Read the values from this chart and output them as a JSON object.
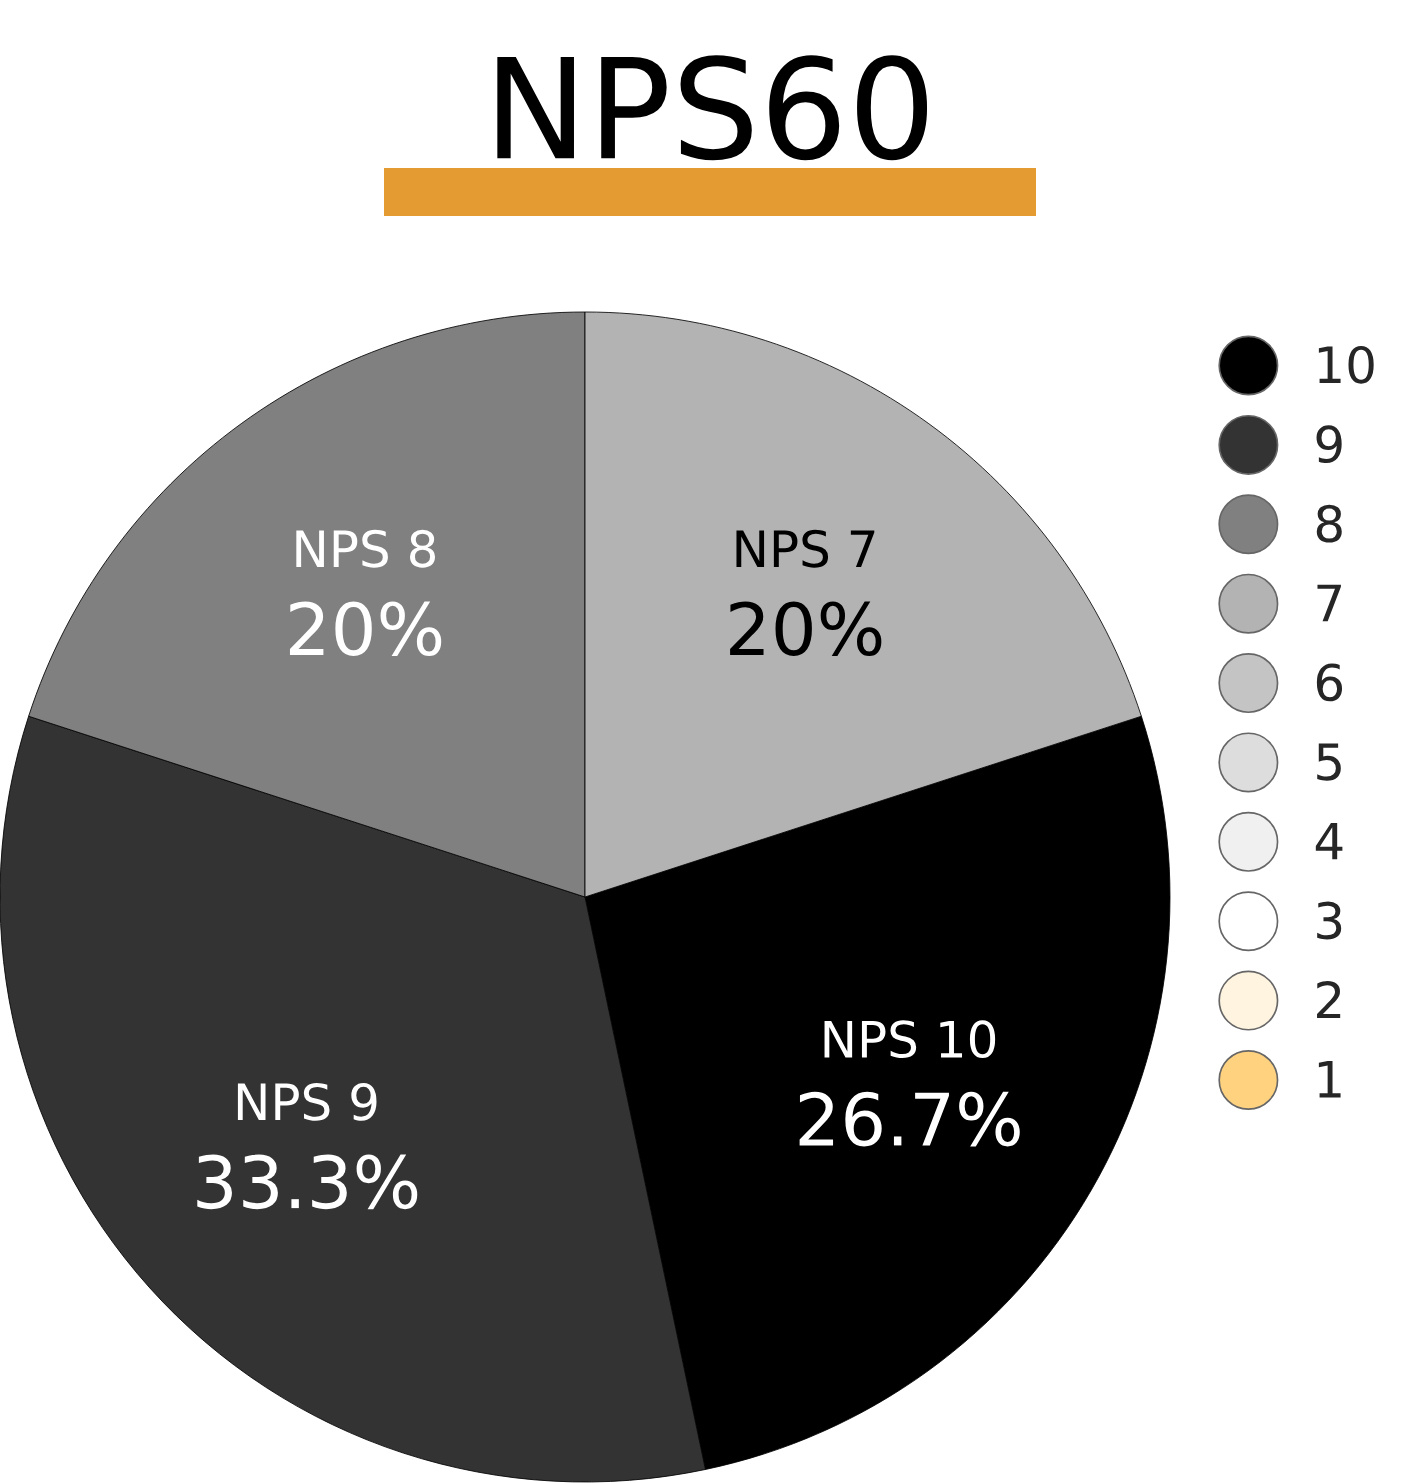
{
  "chart_data": {
    "type": "pie",
    "title": "NPS60",
    "categories": [
      "10",
      "9",
      "8",
      "7",
      "6",
      "5",
      "4",
      "3",
      "2",
      "1"
    ],
    "values": [
      26.7,
      33.3,
      20,
      20,
      0,
      0,
      0,
      0,
      0,
      0
    ],
    "colors": [
      "#000000",
      "#333333",
      "#808080",
      "#b3b3b3",
      "#c4c4c4",
      "#dddddd",
      "#f0f0f0",
      "#ffffff",
      "#fff4e0",
      "#ffd280"
    ],
    "value_labels": [
      "NPS 10\n26.7%",
      "NPS 9\n33.3%",
      "NPS 8\n20%",
      "NPS 7\n20%",
      null,
      null,
      null,
      null,
      null,
      null
    ],
    "legend": "right"
  }
}
